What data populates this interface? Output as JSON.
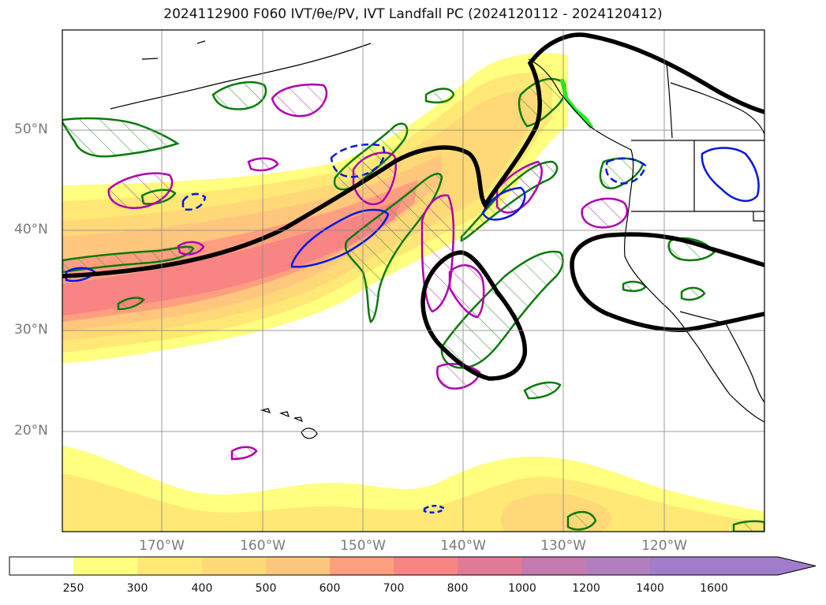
{
  "title": "2024112900 F060 IVT/θe/PV, IVT Landfall PC (2024120112 - 2024120412)",
  "map": {
    "lat_labels": [
      "50°N",
      "40°N",
      "30°N",
      "20°N"
    ],
    "lon_labels": [
      "170°W",
      "160°W",
      "150°W",
      "140°W",
      "130°W",
      "120°W"
    ],
    "fill_colors": [
      "#ffff80",
      "#ffeb75",
      "#ffd877",
      "#ffc77d",
      "#ff9f80",
      "#f88484",
      "#e07a96",
      "#c57ab0",
      "#b27ec0",
      "#a17ccb"
    ]
  },
  "colorbar": {
    "ticks": [
      "250",
      "300",
      "400",
      "500",
      "600",
      "700",
      "800",
      "1000",
      "1200",
      "1400",
      "1600"
    ],
    "colors": [
      "#ffffff",
      "#ffff80",
      "#ffe875",
      "#ffd877",
      "#ffc77d",
      "#ff9f80",
      "#f88484",
      "#e07a96",
      "#c57ab0",
      "#b27ec0",
      "#a17ccb",
      "#a17ccb"
    ]
  }
}
